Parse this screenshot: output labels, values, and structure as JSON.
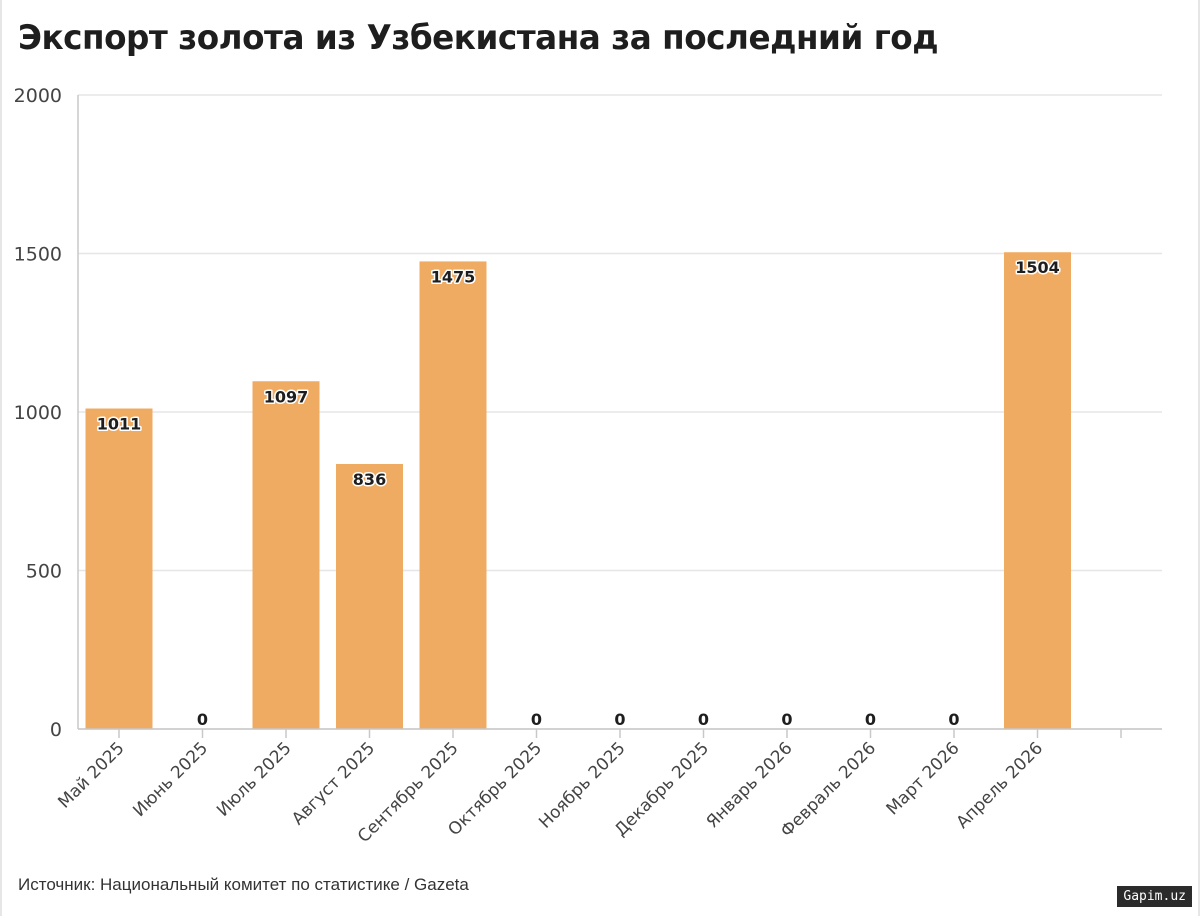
{
  "title": "Экспорт золота из Узбекистана за последний год",
  "source": "Источник: Национальный комитет по статистике / Gazeta",
  "watermark": "Gapim.uz",
  "colors": {
    "bar": "#f0ab62",
    "grid": "#e6e6e6",
    "axis": "#c8c8c8",
    "text": "#1e1e1e"
  },
  "chart_data": {
    "type": "bar",
    "title": "Экспорт золота из Узбекистана за последний год",
    "xlabel": "",
    "ylabel": "",
    "ylim": [
      0,
      2000
    ],
    "yticks": [
      0,
      500,
      1000,
      1500,
      2000
    ],
    "grid": true,
    "categories": [
      "Май 2025",
      "Июнь 2025",
      "Июль 2025",
      "Август 2025",
      "Сентябрь 2025",
      "Октябрь 2025",
      "Ноябрь 2025",
      "Декабрь 2025",
      "Январь 2026",
      "Февраль 2026",
      "Март 2026",
      "Апрель 2026"
    ],
    "values": [
      1011,
      0,
      1097,
      836,
      1475,
      0,
      0,
      0,
      0,
      0,
      0,
      1504
    ]
  }
}
